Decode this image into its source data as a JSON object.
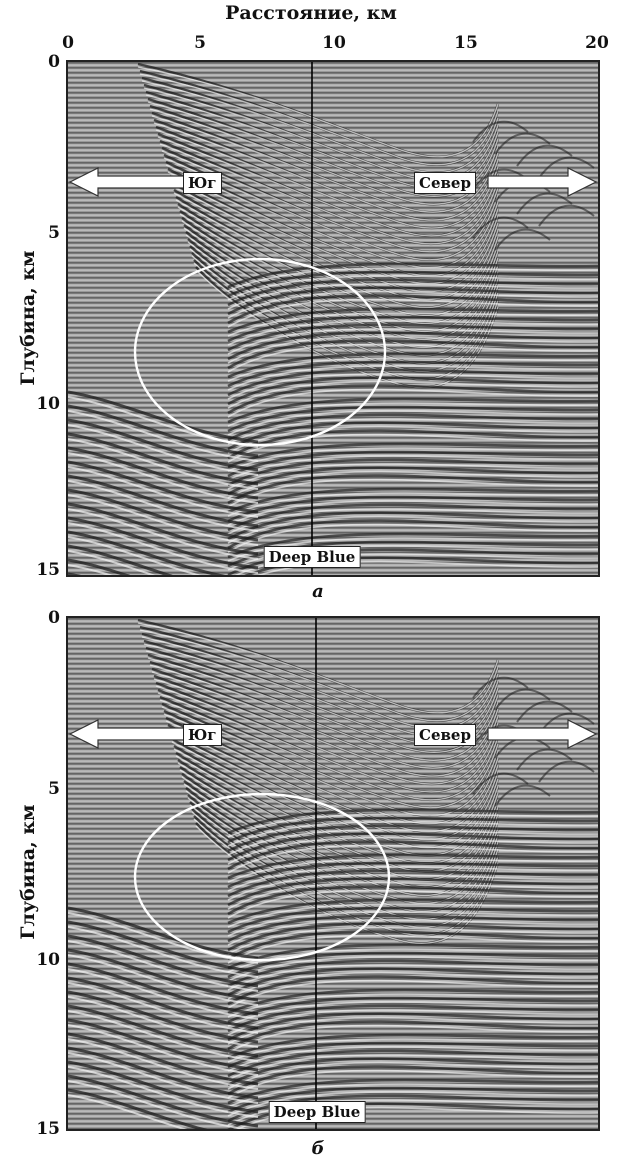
{
  "x_axis": {
    "title": "Расстояние, км",
    "ticks": [
      "0",
      "5",
      "10",
      "15",
      "20"
    ]
  },
  "panels": [
    {
      "caption": "а",
      "y_axis_title": "Глубина, км",
      "y_ticks": [
        "0",
        "5",
        "10",
        "15"
      ],
      "left_arrow_label": "Юг",
      "right_arrow_label": "Север",
      "well_label": "Deep Blue"
    },
    {
      "caption": "б",
      "y_axis_title": "Глубина, км",
      "y_ticks": [
        "0",
        "5",
        "10",
        "15"
      ],
      "left_arrow_label": "Юг",
      "right_arrow_label": "Север",
      "well_label": "Deep Blue"
    }
  ],
  "colors": {
    "background": "#ffffff",
    "seismic_base": "#9a9a9a",
    "reflector_dark": "#1c1c1c",
    "reflector_light": "#f4f4f4",
    "ellipse": "#ffffff"
  }
}
